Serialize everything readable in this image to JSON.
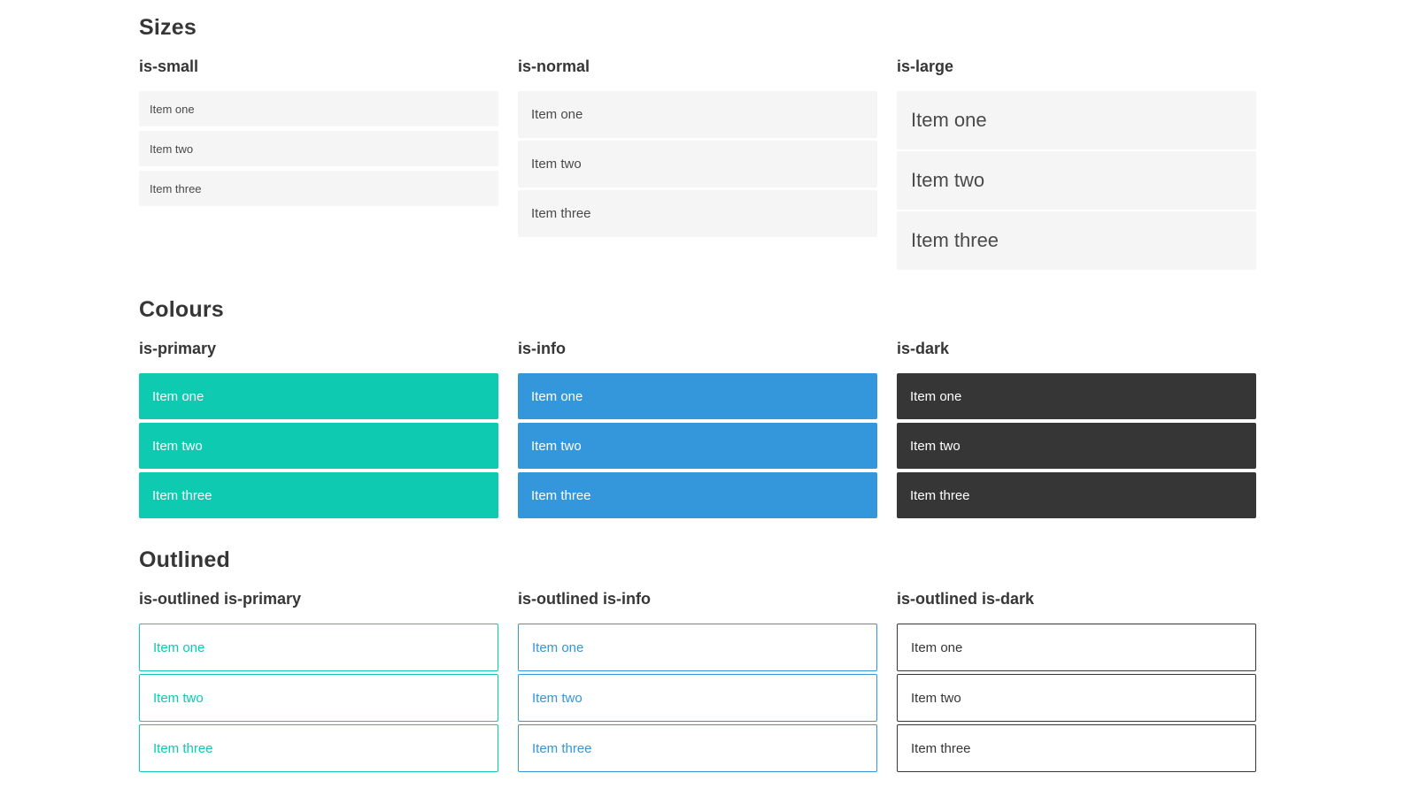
{
  "theme_colors": {
    "primary": "#0dcab0",
    "info": "#3496db",
    "dark": "#363636",
    "item_bg": "#f5f5f5",
    "item_text": "#4a4a4a",
    "heading_text": "#363636",
    "page_bg": "#ffffff",
    "white_text": "#ffffff"
  },
  "sections": [
    {
      "title": "Sizes",
      "columns": [
        {
          "label": "is-small",
          "variant": "small",
          "items": [
            "Item one",
            "Item two",
            "Item three"
          ]
        },
        {
          "label": "is-normal",
          "variant": "normal",
          "items": [
            "Item one",
            "Item two",
            "Item three"
          ]
        },
        {
          "label": "is-large",
          "variant": "large",
          "items": [
            "Item one",
            "Item two",
            "Item three"
          ]
        }
      ]
    },
    {
      "title": "Colours",
      "columns": [
        {
          "label": "is-primary",
          "variant": "primary",
          "items": [
            "Item one",
            "Item two",
            "Item three"
          ]
        },
        {
          "label": "is-info",
          "variant": "info",
          "items": [
            "Item one",
            "Item two",
            "Item three"
          ]
        },
        {
          "label": "is-dark",
          "variant": "dark",
          "items": [
            "Item one",
            "Item two",
            "Item three"
          ]
        }
      ]
    },
    {
      "title": "Outlined",
      "columns": [
        {
          "label": "is-outlined is-primary",
          "variant": "outlined-primary",
          "items": [
            "Item one",
            "Item two",
            "Item three"
          ]
        },
        {
          "label": "is-outlined is-info",
          "variant": "outlined-info",
          "items": [
            "Item one",
            "Item two",
            "Item three"
          ]
        },
        {
          "label": "is-outlined is-dark",
          "variant": "outlined-dark",
          "items": [
            "Item one",
            "Item two",
            "Item three"
          ]
        }
      ]
    }
  ]
}
